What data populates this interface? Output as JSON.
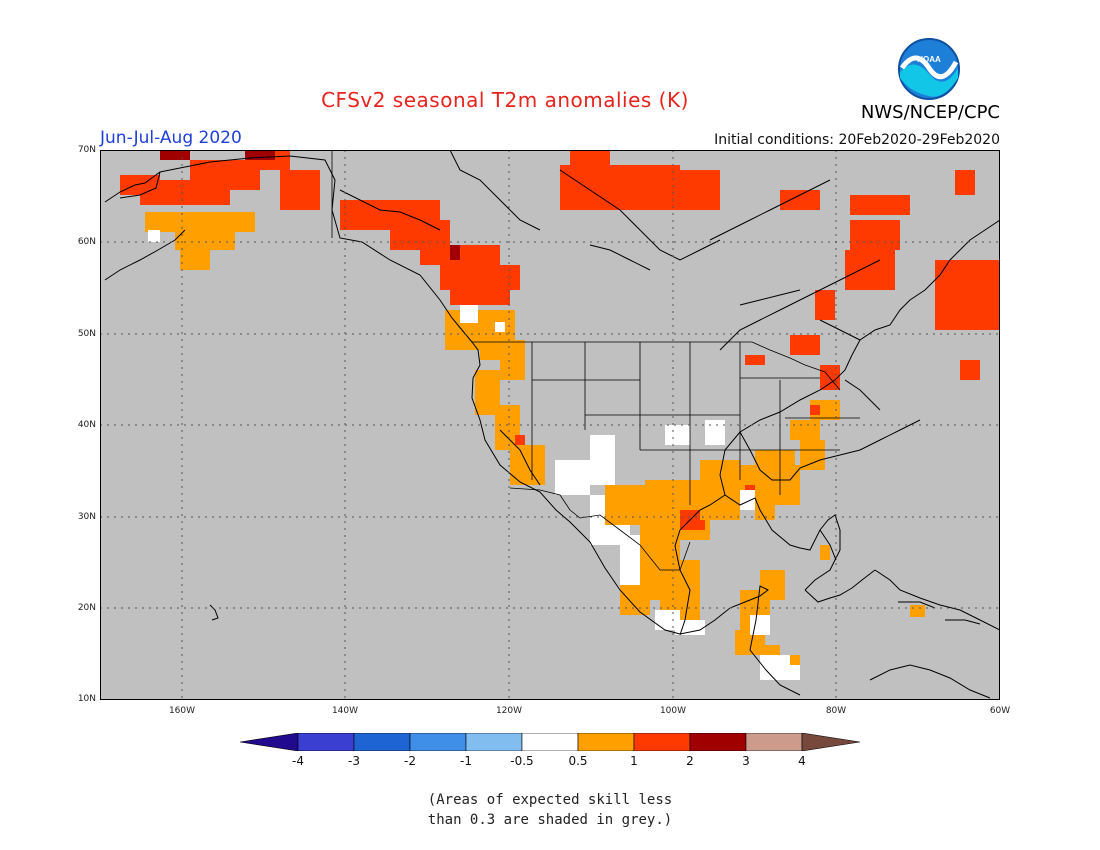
{
  "header": {
    "title": "CFSv2 seasonal T2m anomalies (K)",
    "period": "Jun-Jul-Aug 2020",
    "initial_conditions": "Initial conditions: 20Feb2020-29Feb2020",
    "agency": "NWS/NCEP/CPC",
    "logo_text": "NOAA"
  },
  "map": {
    "lat_labels": [
      "70N",
      "60N",
      "50N",
      "40N",
      "30N",
      "20N",
      "10N"
    ],
    "lon_labels": [
      "160W",
      "140W",
      "120W",
      "100W",
      "80W",
      "60W"
    ],
    "background_color": "#c0c0c0"
  },
  "colorbar": {
    "labels": [
      "-4",
      "-3",
      "-2",
      "-1",
      "-0.5",
      "0.5",
      "1",
      "2",
      "3",
      "4"
    ],
    "colors": [
      "#220a8e",
      "#3a3fd1",
      "#1f64d3",
      "#3f8fe8",
      "#82bdf0",
      "#ffffff",
      "#ffa000",
      "#ff3a00",
      "#a00000",
      "#cd9b8c",
      "#76493c"
    ]
  },
  "note": {
    "line1": "(Areas of expected skill less",
    "line2": "than 0.3 are shaded in grey.)"
  }
}
